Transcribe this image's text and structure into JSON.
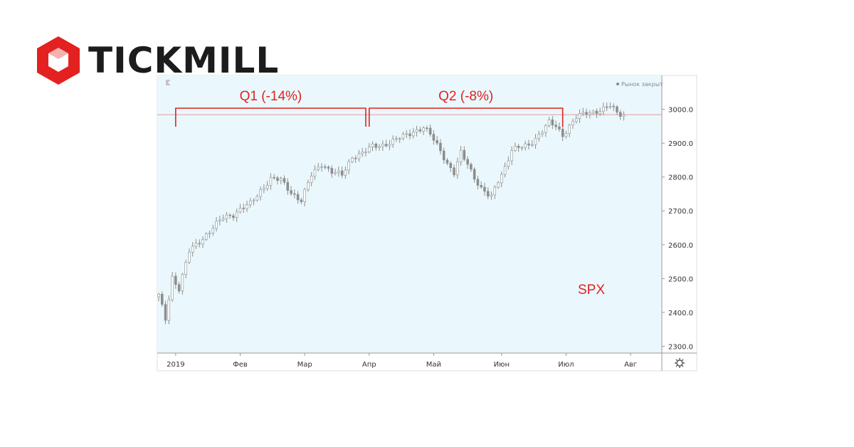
{
  "brand": {
    "name": "TICKMILL",
    "color": "#e32120",
    "icon": "hexagon-logo-icon"
  },
  "chart_data": {
    "type": "candlestick",
    "instrument": "SPX",
    "status": "Рынок закрыт",
    "x_tick_labels": [
      "2019",
      "Фев",
      "Мар",
      "Апр",
      "Май",
      "Июн",
      "Июл",
      "Авг"
    ],
    "y_tick_labels": [
      "3000.0",
      "2900.0",
      "2800.0",
      "2700.0",
      "2600.0",
      "2500.0",
      "2400.0",
      "2300.0"
    ],
    "ylim": [
      2280,
      3100
    ],
    "reference_level": 2984,
    "x_index_range": [
      0,
      148
    ],
    "x_ticks": [
      {
        "label": "2019",
        "index": 5
      },
      {
        "label": "Фев",
        "index": 24
      },
      {
        "label": "Мар",
        "index": 43
      },
      {
        "label": "Апр",
        "index": 62
      },
      {
        "label": "Май",
        "index": 81
      },
      {
        "label": "Июн",
        "index": 101
      },
      {
        "label": "Июл",
        "index": 120
      },
      {
        "label": "Авг",
        "index": 139
      }
    ],
    "y_ticks": [
      3000,
      2900,
      2800,
      2700,
      2600,
      2500,
      2400,
      2300
    ],
    "close_anchors": [
      [
        0,
        2450
      ],
      [
        2,
        2380
      ],
      [
        4,
        2505
      ],
      [
        6,
        2470
      ],
      [
        9,
        2580
      ],
      [
        12,
        2610
      ],
      [
        16,
        2650
      ],
      [
        19,
        2680
      ],
      [
        22,
        2690
      ],
      [
        24,
        2705
      ],
      [
        27,
        2720
      ],
      [
        30,
        2760
      ],
      [
        33,
        2795
      ],
      [
        36,
        2790
      ],
      [
        39,
        2755
      ],
      [
        42,
        2730
      ],
      [
        45,
        2805
      ],
      [
        48,
        2840
      ],
      [
        51,
        2815
      ],
      [
        54,
        2805
      ],
      [
        57,
        2860
      ],
      [
        60,
        2870
      ],
      [
        63,
        2890
      ],
      [
        66,
        2895
      ],
      [
        69,
        2905
      ],
      [
        72,
        2920
      ],
      [
        75,
        2935
      ],
      [
        78,
        2945
      ],
      [
        80,
        2925
      ],
      [
        83,
        2880
      ],
      [
        85,
        2840
      ],
      [
        87,
        2810
      ],
      [
        89,
        2870
      ],
      [
        91,
        2840
      ],
      [
        93,
        2800
      ],
      [
        95,
        2765
      ],
      [
        97,
        2745
      ],
      [
        98,
        2740
      ],
      [
        100,
        2790
      ],
      [
        102,
        2830
      ],
      [
        104,
        2880
      ],
      [
        106,
        2885
      ],
      [
        109,
        2895
      ],
      [
        112,
        2925
      ],
      [
        115,
        2960
      ],
      [
        117,
        2950
      ],
      [
        119,
        2925
      ],
      [
        121,
        2950
      ],
      [
        123,
        2975
      ],
      [
        126,
        2990
      ],
      [
        129,
        2995
      ],
      [
        131,
        3000
      ],
      [
        133,
        3010
      ],
      [
        135,
        2990
      ],
      [
        137,
        2985
      ]
    ],
    "annotations": [
      {
        "label": "Q1 (-14%)",
        "from_index": 5,
        "to_index": 61
      },
      {
        "label": "Q2 (-8%)",
        "from_index": 62,
        "to_index": 119
      },
      {
        "label": "SPX"
      }
    ],
    "colors": {
      "background": "#eaf8fd",
      "candle": "#8d8d8d",
      "annotation": "#e32120",
      "grid_line": "#e59a9a",
      "axis": "#999999"
    }
  }
}
